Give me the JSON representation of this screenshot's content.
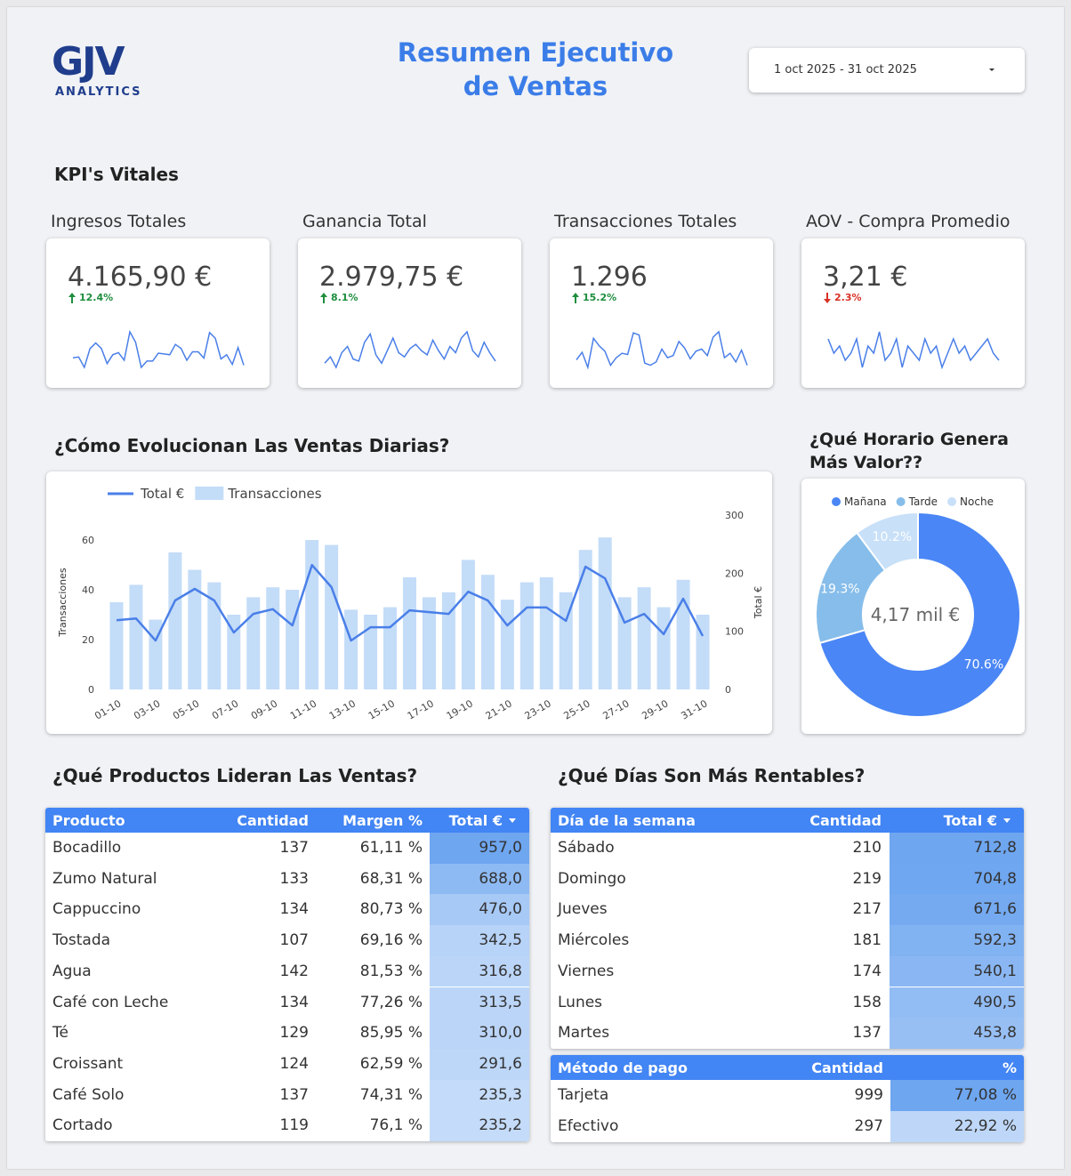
{
  "header": {
    "logo": "GJV",
    "logo_sub": "ANALYTICS",
    "title_line1": "Resumen Ejecutivo",
    "title_line2": "de Ventas",
    "date_range": "1 oct 2025 - 31 oct 2025"
  },
  "kpi_section": {
    "title": "KPI's Vitales",
    "kpis": [
      {
        "label": "Ingresos Totales",
        "value": "4.165,90 €",
        "delta": "12.4%",
        "direction": "up"
      },
      {
        "label": "Ganancia Total",
        "value": "2.979,75 €",
        "delta": "8.1%",
        "direction": "up",
        "sparkline": [
          70,
          85,
          60,
          95,
          110,
          80,
          75,
          120,
          140,
          90,
          70,
          100,
          130,
          95,
          85,
          105,
          115,
          100,
          90,
          125,
          100,
          80,
          110,
          95,
          130,
          145,
          100,
          85,
          120,
          95,
          75
        ]
      },
      {
        "label": "Transacciones Totales",
        "value": "1.296",
        "delta": "15.2%",
        "direction": "up"
      },
      {
        "label": "AOV - Compra Promedio",
        "value": "3,21 €",
        "delta": "2.3%",
        "direction": "down",
        "sparkline": [
          3.3,
          3.2,
          3.25,
          3.15,
          3.2,
          3.3,
          3.1,
          3.25,
          3.2,
          3.35,
          3.15,
          3.2,
          3.3,
          3.1,
          3.25,
          3.2,
          3.15,
          3.3,
          3.2,
          3.25,
          3.1,
          3.2,
          3.3,
          3.2,
          3.25,
          3.15,
          3.2,
          3.25,
          3.3,
          3.2,
          3.15
        ]
      }
    ]
  },
  "chart_data": [
    {
      "type": "combo",
      "title": "¿Cómo Evolucionan Las Ventas Diarias?",
      "categories": [
        "01-10",
        null,
        "03-10",
        null,
        "05-10",
        null,
        "07-10",
        null,
        "09-10",
        null,
        "11-10",
        null,
        "13-10",
        null,
        "15-10",
        null,
        "17-10",
        null,
        "19-10",
        null,
        "21-10",
        null,
        "23-10",
        null,
        "25-10",
        null,
        "27-10",
        null,
        "29-10",
        null,
        "31-10"
      ],
      "series": [
        {
          "name": "Total €",
          "type": "line",
          "axis": "y2",
          "color": "#4a7fe8",
          "values": [
            119,
            122,
            84,
            153,
            173,
            153,
            98,
            130,
            138,
            110,
            214,
            176,
            84,
            107,
            107,
            136,
            133,
            130,
            168,
            153,
            110,
            141,
            141,
            118,
            211,
            191,
            115,
            130,
            95,
            156,
            92
          ]
        },
        {
          "name": "Transacciones",
          "type": "bar",
          "color": "#c3dcf8",
          "values": [
            35,
            42,
            28,
            55,
            48,
            43,
            30,
            37,
            41,
            40,
            60,
            58,
            32,
            30,
            33,
            45,
            37,
            39,
            52,
            46,
            36,
            43,
            45,
            39,
            56,
            61,
            37,
            41,
            33,
            44,
            30
          ]
        }
      ],
      "ylabel": "Transacciones",
      "y2label": "Total €",
      "ylim": [
        0,
        70
      ],
      "yticks": [
        0,
        20,
        40,
        60
      ],
      "y2lim": [
        0,
        300
      ],
      "y2ticks": [
        0,
        100,
        200,
        300
      ],
      "legend": "top-left"
    },
    {
      "type": "donut",
      "title": "¿Qué Horario Genera Más Valor??",
      "categories": [
        "Mañana",
        "Tarde",
        "Noche"
      ],
      "values": [
        70.6,
        19.3,
        10.2
      ],
      "value_labels": [
        "70.6%",
        "19.3%",
        "10.2%"
      ],
      "colors": [
        "#4a86f5",
        "#86bdea",
        "#c8e0f8"
      ],
      "center_label": "4,17 mil €",
      "legend": "top"
    }
  ],
  "products_table": {
    "title": "¿Qué Productos Lideran Las Ventas?",
    "columns": [
      "Producto",
      "Cantidad",
      "Margen %",
      "Total €"
    ],
    "rows": [
      [
        "Bocadillo",
        "137",
        "61,11 %",
        "957,0"
      ],
      [
        "Zumo Natural",
        "133",
        "68,31 %",
        "688,0"
      ],
      [
        "Cappuccino",
        "134",
        "80,73 %",
        "476,0"
      ],
      [
        "Tostada",
        "107",
        "69,16 %",
        "342,5"
      ],
      [
        "Agua",
        "142",
        "81,53 %",
        "316,8"
      ],
      [
        "Café con Leche",
        "134",
        "77,26 %",
        "313,5"
      ],
      [
        "Té",
        "129",
        "85,95 %",
        "310,0"
      ],
      [
        "Croissant",
        "124",
        "62,59 %",
        "291,6"
      ],
      [
        "Café Solo",
        "137",
        "74,31 %",
        "235,3"
      ],
      [
        "Cortado",
        "119",
        "76,1 %",
        "235,2"
      ]
    ]
  },
  "days_table": {
    "title": "¿Qué Días Son Más Rentables?",
    "columns": [
      "Día de la semana",
      "Cantidad",
      "Total €"
    ],
    "rows": [
      [
        "Sábado",
        "210",
        "712,8"
      ],
      [
        "Domingo",
        "219",
        "704,8"
      ],
      [
        "Jueves",
        "217",
        "671,6"
      ],
      [
        "Miércoles",
        "181",
        "592,3"
      ],
      [
        "Viernes",
        "174",
        "540,1"
      ],
      [
        "Lunes",
        "158",
        "490,5"
      ],
      [
        "Martes",
        "137",
        "453,8"
      ]
    ]
  },
  "payment_table": {
    "columns": [
      "Método de pago",
      "Cantidad",
      "%"
    ],
    "rows": [
      [
        "Tarjeta",
        "999",
        "77,08 %"
      ],
      [
        "Efectivo",
        "297",
        "22,92 %"
      ]
    ]
  }
}
